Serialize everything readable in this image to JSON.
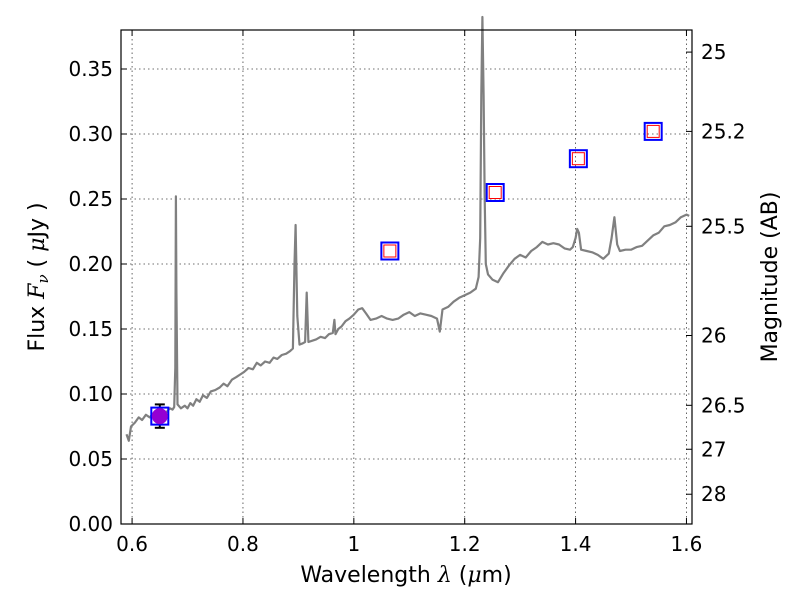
{
  "chart_data": {
    "type": "line",
    "xlabel": "Wavelength  λ (μm)",
    "xlabel_parts": [
      "Wavelength  ",
      "λ",
      " (",
      "μ",
      "m)"
    ],
    "ylabel": "Flux  Fν  ( μJy )",
    "ylabel_parts": [
      "Flux  ",
      "F",
      "ν",
      "  ( ",
      "μ",
      "Jy )"
    ],
    "y2label": "Magnitude (AB)",
    "xlim": [
      0.58,
      1.61
    ],
    "ylim": [
      0.0,
      0.38
    ],
    "grid": true,
    "x_ticks": [
      {
        "value": 0.6,
        "label": "0.6"
      },
      {
        "value": 0.8,
        "label": "0.8"
      },
      {
        "value": 1.0,
        "label": "1"
      },
      {
        "value": 1.2,
        "label": "1.2"
      },
      {
        "value": 1.4,
        "label": "1.4"
      },
      {
        "value": 1.6,
        "label": "1.6"
      }
    ],
    "y_ticks": [
      {
        "value": 0.0,
        "label": "0.00"
      },
      {
        "value": 0.05,
        "label": "0.05"
      },
      {
        "value": 0.1,
        "label": "0.10"
      },
      {
        "value": 0.15,
        "label": "0.15"
      },
      {
        "value": 0.2,
        "label": "0.20"
      },
      {
        "value": 0.25,
        "label": "0.25"
      },
      {
        "value": 0.3,
        "label": "0.30"
      },
      {
        "value": 0.35,
        "label": "0.35"
      }
    ],
    "y2_ticks": [
      {
        "flux": 0.363,
        "label": "25"
      },
      {
        "flux": 0.302,
        "label": "25.2"
      },
      {
        "flux": 0.229,
        "label": "25.5"
      },
      {
        "flux": 0.145,
        "label": "26"
      },
      {
        "flux": 0.0913,
        "label": "26.5"
      },
      {
        "flux": 0.0575,
        "label": "27"
      },
      {
        "flux": 0.0229,
        "label": "28"
      }
    ],
    "series": [
      {
        "type": "line",
        "color": "#808080",
        "points": [
          [
            0.59,
            0.069
          ],
          [
            0.594,
            0.064
          ],
          [
            0.598,
            0.075
          ],
          [
            0.605,
            0.078
          ],
          [
            0.612,
            0.082
          ],
          [
            0.618,
            0.08
          ],
          [
            0.625,
            0.084
          ],
          [
            0.632,
            0.082
          ],
          [
            0.64,
            0.086
          ],
          [
            0.648,
            0.083
          ],
          [
            0.655,
            0.087
          ],
          [
            0.662,
            0.086
          ],
          [
            0.668,
            0.089
          ],
          [
            0.673,
            0.088
          ],
          [
            0.676,
            0.09
          ],
          [
            0.678,
            0.12
          ],
          [
            0.679,
            0.252
          ],
          [
            0.68,
            0.18
          ],
          [
            0.682,
            0.092
          ],
          [
            0.688,
            0.089
          ],
          [
            0.695,
            0.091
          ],
          [
            0.7,
            0.089
          ],
          [
            0.705,
            0.093
          ],
          [
            0.71,
            0.091
          ],
          [
            0.716,
            0.096
          ],
          [
            0.722,
            0.094
          ],
          [
            0.728,
            0.099
          ],
          [
            0.735,
            0.097
          ],
          [
            0.742,
            0.102
          ],
          [
            0.75,
            0.103
          ],
          [
            0.758,
            0.105
          ],
          [
            0.765,
            0.108
          ],
          [
            0.772,
            0.106
          ],
          [
            0.78,
            0.111
          ],
          [
            0.788,
            0.113
          ],
          [
            0.795,
            0.115
          ],
          [
            0.802,
            0.117
          ],
          [
            0.81,
            0.12
          ],
          [
            0.818,
            0.119
          ],
          [
            0.825,
            0.124
          ],
          [
            0.832,
            0.122
          ],
          [
            0.84,
            0.125
          ],
          [
            0.848,
            0.124
          ],
          [
            0.855,
            0.128
          ],
          [
            0.862,
            0.127
          ],
          [
            0.87,
            0.13
          ],
          [
            0.878,
            0.131
          ],
          [
            0.885,
            0.133
          ],
          [
            0.89,
            0.135
          ],
          [
            0.893,
            0.2
          ],
          [
            0.895,
            0.23
          ],
          [
            0.898,
            0.16
          ],
          [
            0.902,
            0.138
          ],
          [
            0.908,
            0.139
          ],
          [
            0.912,
            0.14
          ],
          [
            0.915,
            0.178
          ],
          [
            0.918,
            0.14
          ],
          [
            0.925,
            0.141
          ],
          [
            0.932,
            0.142
          ],
          [
            0.94,
            0.144
          ],
          [
            0.948,
            0.143
          ],
          [
            0.955,
            0.146
          ],
          [
            0.962,
            0.147
          ],
          [
            0.965,
            0.157
          ],
          [
            0.967,
            0.146
          ],
          [
            0.972,
            0.15
          ],
          [
            0.978,
            0.152
          ],
          [
            0.985,
            0.156
          ],
          [
            0.992,
            0.158
          ],
          [
            1.0,
            0.161
          ],
          [
            1.008,
            0.165
          ],
          [
            1.015,
            0.166
          ],
          [
            1.022,
            0.162
          ],
          [
            1.03,
            0.157
          ],
          [
            1.04,
            0.158
          ],
          [
            1.05,
            0.16
          ],
          [
            1.06,
            0.158
          ],
          [
            1.07,
            0.157
          ],
          [
            1.08,
            0.158
          ],
          [
            1.09,
            0.161
          ],
          [
            1.1,
            0.163
          ],
          [
            1.11,
            0.16
          ],
          [
            1.12,
            0.162
          ],
          [
            1.13,
            0.161
          ],
          [
            1.14,
            0.16
          ],
          [
            1.15,
            0.158
          ],
          [
            1.155,
            0.148
          ],
          [
            1.16,
            0.165
          ],
          [
            1.17,
            0.167
          ],
          [
            1.18,
            0.171
          ],
          [
            1.19,
            0.174
          ],
          [
            1.2,
            0.176
          ],
          [
            1.21,
            0.178
          ],
          [
            1.22,
            0.181
          ],
          [
            1.225,
            0.19
          ],
          [
            1.228,
            0.22
          ],
          [
            1.23,
            0.33
          ],
          [
            1.232,
            0.39
          ],
          [
            1.234,
            0.33
          ],
          [
            1.236,
            0.25
          ],
          [
            1.238,
            0.2
          ],
          [
            1.242,
            0.192
          ],
          [
            1.25,
            0.188
          ],
          [
            1.26,
            0.186
          ],
          [
            1.27,
            0.193
          ],
          [
            1.28,
            0.199
          ],
          [
            1.29,
            0.204
          ],
          [
            1.3,
            0.207
          ],
          [
            1.31,
            0.205
          ],
          [
            1.32,
            0.21
          ],
          [
            1.33,
            0.213
          ],
          [
            1.34,
            0.217
          ],
          [
            1.35,
            0.215
          ],
          [
            1.36,
            0.216
          ],
          [
            1.37,
            0.215
          ],
          [
            1.38,
            0.212
          ],
          [
            1.39,
            0.211
          ],
          [
            1.395,
            0.213
          ],
          [
            1.4,
            0.22
          ],
          [
            1.403,
            0.227
          ],
          [
            1.406,
            0.224
          ],
          [
            1.41,
            0.211
          ],
          [
            1.42,
            0.21
          ],
          [
            1.43,
            0.209
          ],
          [
            1.44,
            0.207
          ],
          [
            1.45,
            0.204
          ],
          [
            1.46,
            0.208
          ],
          [
            1.465,
            0.22
          ],
          [
            1.47,
            0.236
          ],
          [
            1.475,
            0.215
          ],
          [
            1.48,
            0.21
          ],
          [
            1.49,
            0.211
          ],
          [
            1.5,
            0.211
          ],
          [
            1.51,
            0.213
          ],
          [
            1.52,
            0.214
          ],
          [
            1.53,
            0.218
          ],
          [
            1.54,
            0.222
          ],
          [
            1.55,
            0.224
          ],
          [
            1.56,
            0.229
          ],
          [
            1.57,
            0.23
          ],
          [
            1.58,
            0.232
          ],
          [
            1.59,
            0.236
          ],
          [
            1.6,
            0.238
          ],
          [
            1.605,
            0.237
          ]
        ]
      },
      {
        "type": "scatter",
        "name": "",
        "marker": "square",
        "color": "#0000ff",
        "points": [
          {
            "x": 0.65,
            "y": 0.083,
            "err": 0.009
          },
          {
            "x": 1.065,
            "y": 0.21
          },
          {
            "x": 1.255,
            "y": 0.255
          },
          {
            "x": 1.405,
            "y": 0.281
          },
          {
            "x": 1.54,
            "y": 0.302
          }
        ]
      },
      {
        "type": "scatter",
        "name": "",
        "marker": "square-small",
        "color": "#ff0000",
        "points": [
          {
            "x": 1.065,
            "y": 0.21
          },
          {
            "x": 1.255,
            "y": 0.255
          },
          {
            "x": 1.405,
            "y": 0.281
          },
          {
            "x": 1.54,
            "y": 0.302
          }
        ]
      },
      {
        "type": "scatter",
        "name": "",
        "marker": "circle",
        "color": "#9400d3",
        "points": [
          {
            "x": 0.65,
            "y": 0.083
          }
        ]
      }
    ]
  }
}
